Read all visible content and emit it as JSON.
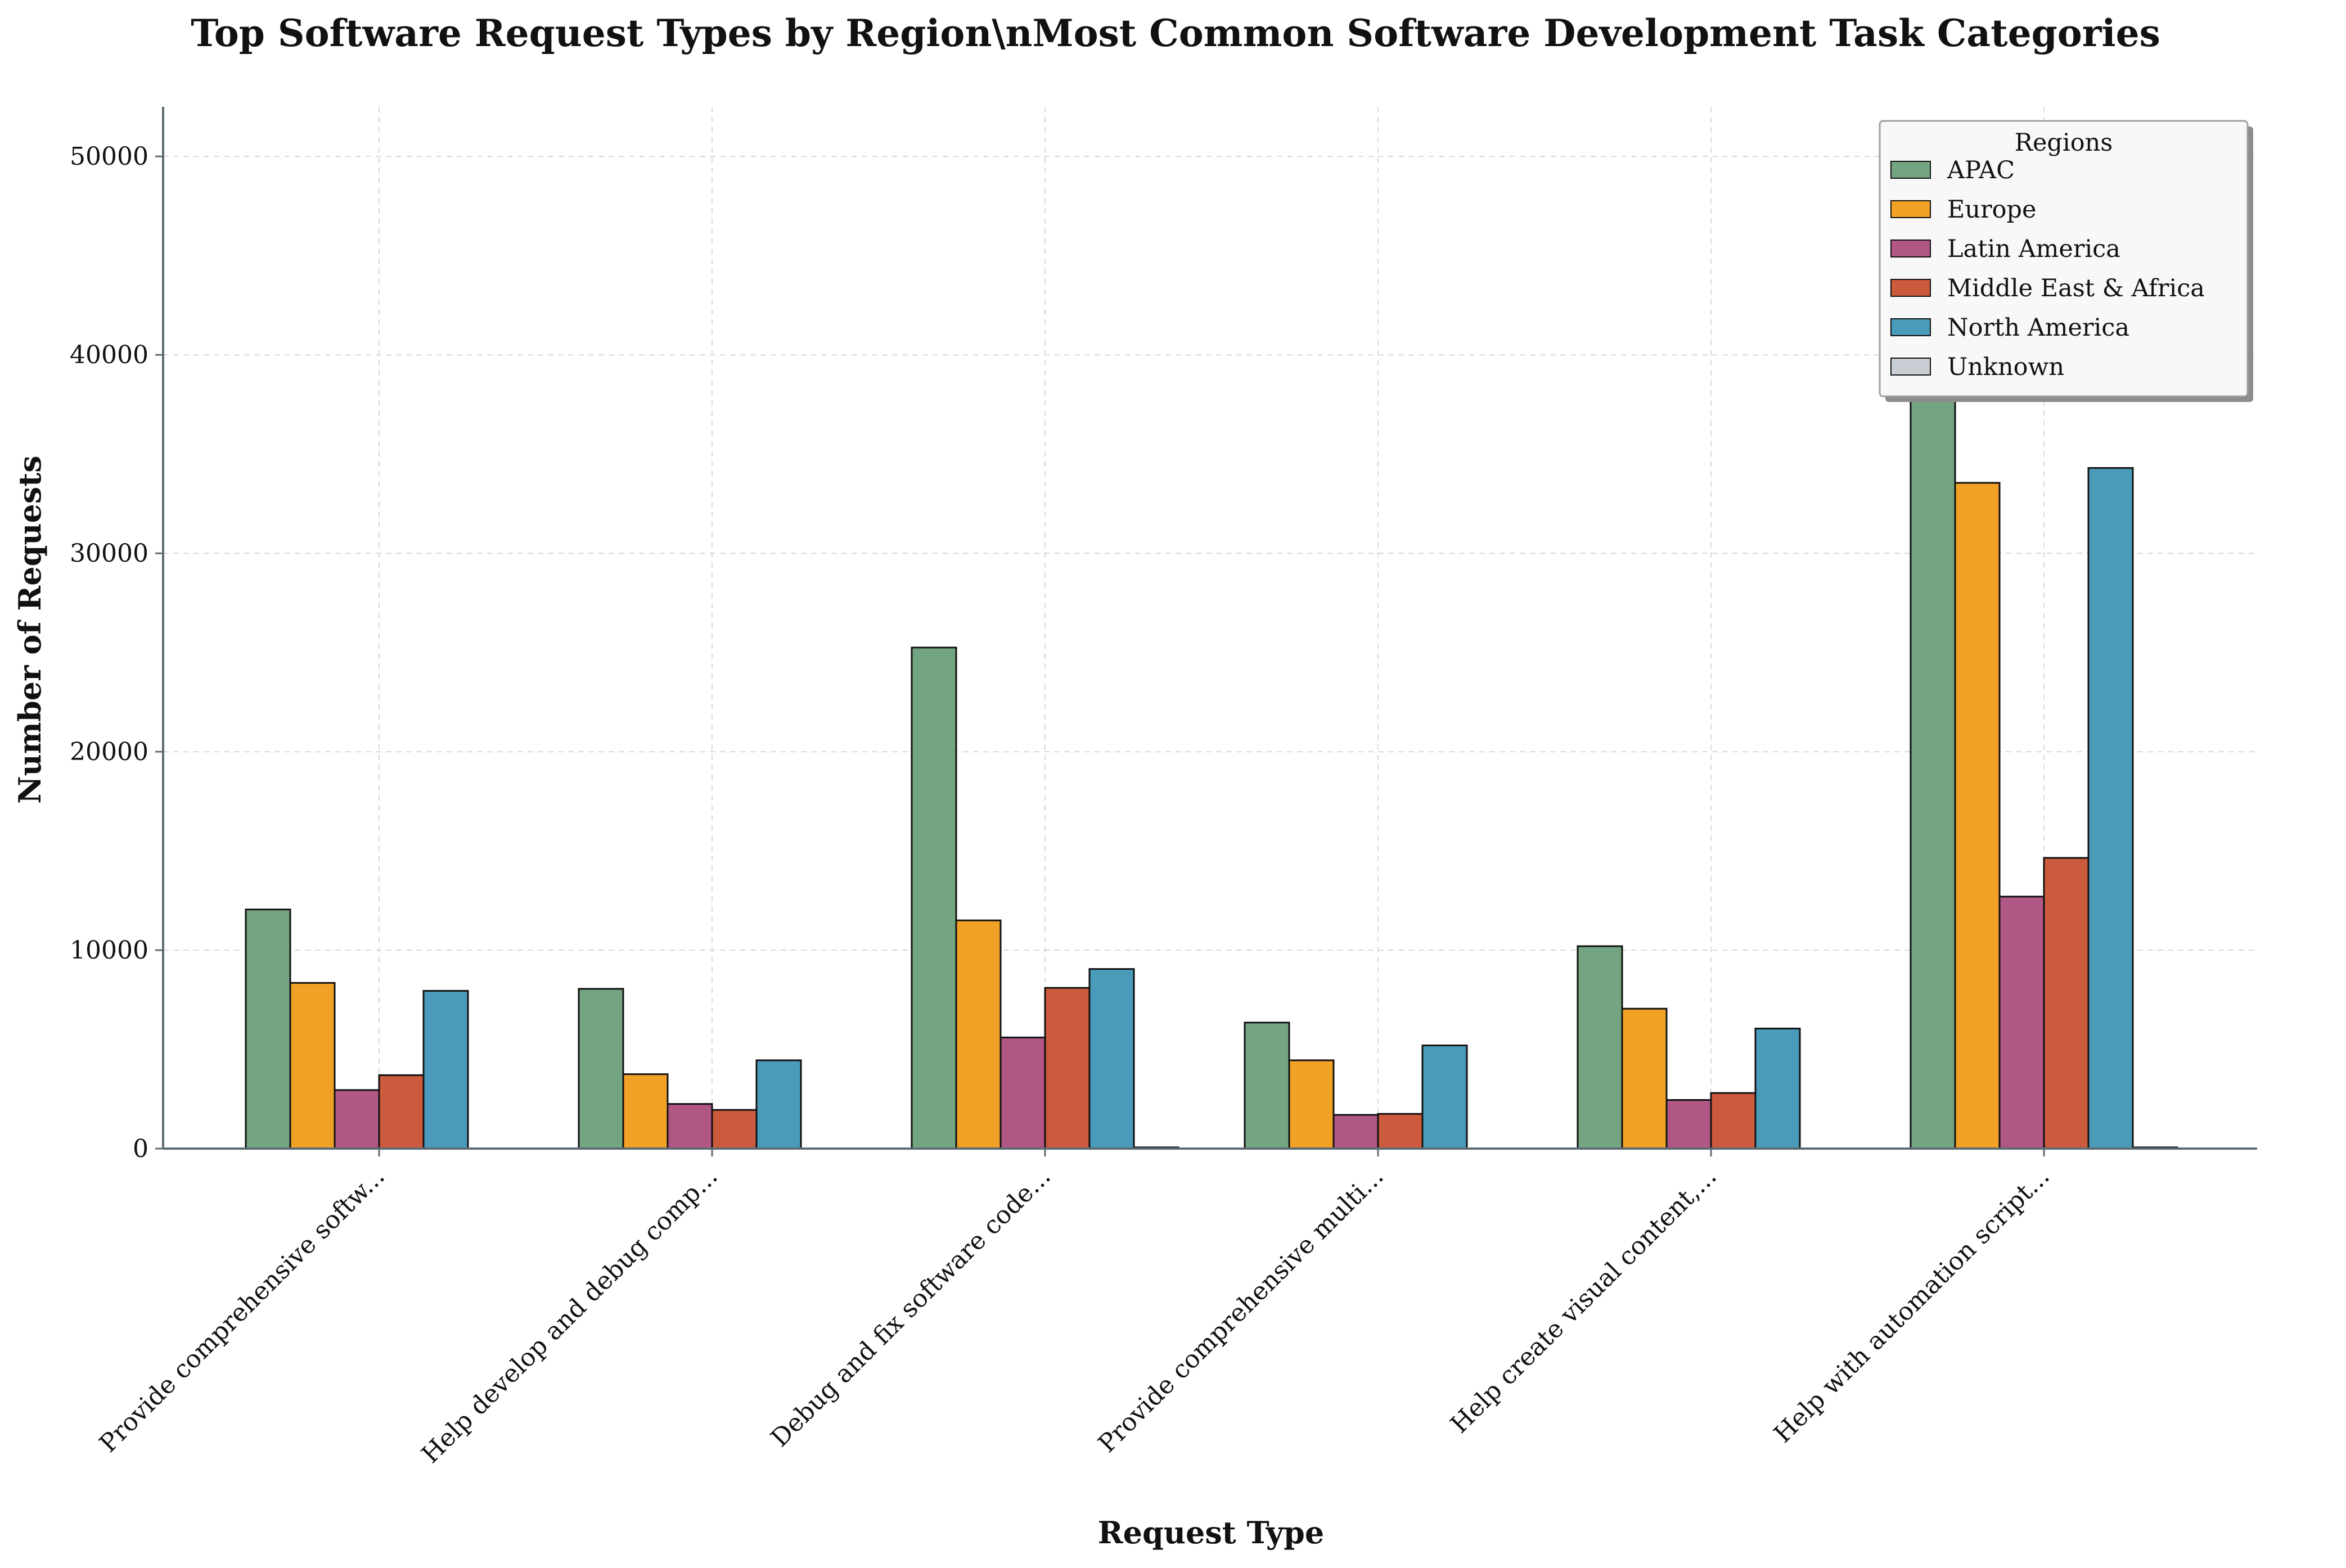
{
  "chart_data": {
    "type": "bar",
    "title": "Top Software Request Types by Region\\nMost Common Software Development Task Categories",
    "xlabel": "Request Type",
    "ylabel": "Number of Requests",
    "ylim": [
      0,
      52500
    ],
    "yticks": [
      0,
      10000,
      20000,
      30000,
      40000,
      50000
    ],
    "grid": true,
    "legend": {
      "title": "Regions",
      "placement": "top-right"
    },
    "categories": [
      "Provide comprehensive softw...",
      "Help develop and debug comp...",
      "Debug and fix software code...",
      "Provide comprehensive multi...",
      "Help create visual content,...",
      "Help with automation script..."
    ],
    "series": [
      {
        "name": "APAC",
        "color": "#74a582",
        "values": [
          12050,
          8050,
          25250,
          6350,
          10200,
          50000
        ]
      },
      {
        "name": "Europe",
        "color": "#f2a127",
        "values": [
          8350,
          3750,
          11500,
          4450,
          7050,
          33550
        ]
      },
      {
        "name": "Latin America",
        "color": "#b05785",
        "values": [
          2950,
          2250,
          5600,
          1700,
          2450,
          12700
        ]
      },
      {
        "name": "Middle East & Africa",
        "color": "#cc5a3c",
        "values": [
          3700,
          1950,
          8100,
          1750,
          2800,
          14650
        ]
      },
      {
        "name": "North America",
        "color": "#4a9bba",
        "values": [
          7950,
          4450,
          9050,
          5200,
          6050,
          34300
        ]
      },
      {
        "name": "Unknown",
        "color": "#c8ced3",
        "values": [
          0,
          0,
          60,
          0,
          0,
          60
        ]
      }
    ]
  }
}
